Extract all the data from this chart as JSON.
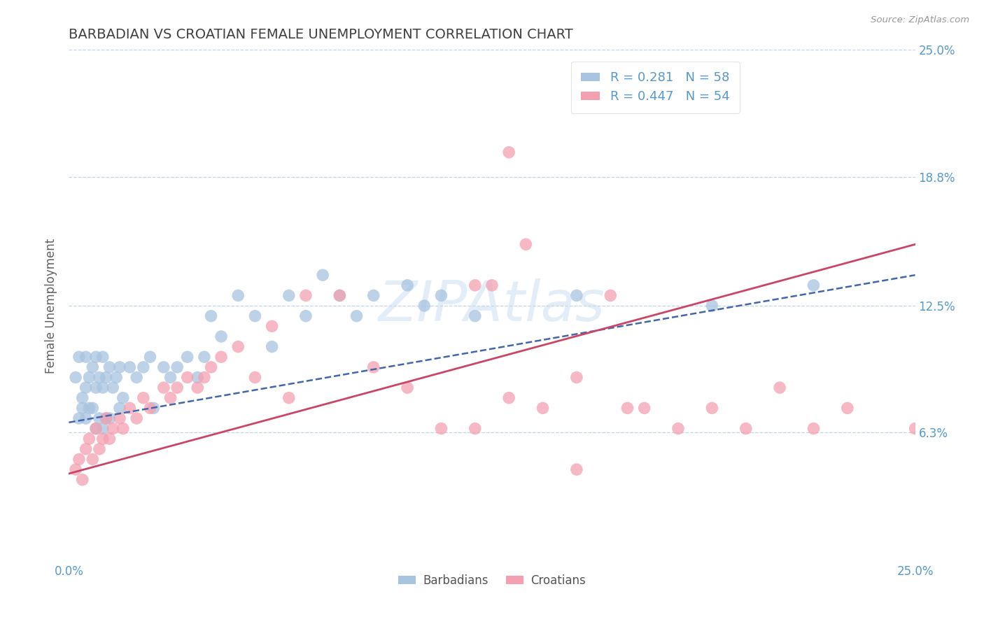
{
  "title": "BARBADIAN VS CROATIAN FEMALE UNEMPLOYMENT CORRELATION CHART",
  "source_text": "Source: ZipAtlas.com",
  "ylabel": "Female Unemployment",
  "xlim": [
    0,
    0.25
  ],
  "ylim": [
    0,
    0.25
  ],
  "xtick_labels": [
    "0.0%",
    "25.0%"
  ],
  "xtick_positions": [
    0.0,
    0.25
  ],
  "ytick_labels": [
    "6.3%",
    "12.5%",
    "18.8%",
    "25.0%"
  ],
  "ytick_positions": [
    0.063,
    0.125,
    0.188,
    0.25
  ],
  "barbadian_color": "#a8c4e0",
  "croatian_color": "#f4a0b0",
  "barbadian_line_color": "#4466aa",
  "croatian_line_color": "#cc4466",
  "barbadian_R": 0.281,
  "barbadian_N": 58,
  "croatian_R": 0.447,
  "croatian_N": 54,
  "background_color": "#ffffff",
  "grid_color": "#c0d4e8",
  "title_color": "#404040",
  "axis_label_color": "#606060",
  "tick_label_color": "#5599cc",
  "legend_label_barbadian": "Barbadians",
  "legend_label_croatian": "Croatians",
  "watermark": "ZIPAtlas",
  "barbadian_trend_x0": 0.0,
  "barbadian_trend_y0": 0.068,
  "barbadian_trend_x1": 0.25,
  "barbadian_trend_y1": 0.14,
  "croatian_trend_x0": 0.0,
  "croatian_trend_y0": 0.043,
  "croatian_trend_x1": 0.25,
  "croatian_trend_y1": 0.155,
  "barbadian_scatter_x": [
    0.002,
    0.003,
    0.003,
    0.004,
    0.004,
    0.005,
    0.005,
    0.005,
    0.006,
    0.006,
    0.007,
    0.007,
    0.008,
    0.008,
    0.008,
    0.009,
    0.009,
    0.01,
    0.01,
    0.01,
    0.011,
    0.011,
    0.012,
    0.012,
    0.013,
    0.014,
    0.015,
    0.015,
    0.016,
    0.018,
    0.02,
    0.022,
    0.024,
    0.025,
    0.028,
    0.03,
    0.032,
    0.035,
    0.038,
    0.04,
    0.042,
    0.045,
    0.05,
    0.055,
    0.06,
    0.065,
    0.07,
    0.075,
    0.08,
    0.085,
    0.09,
    0.1,
    0.105,
    0.11,
    0.12,
    0.15,
    0.19,
    0.22
  ],
  "barbadian_scatter_y": [
    0.09,
    0.07,
    0.1,
    0.08,
    0.075,
    0.07,
    0.085,
    0.1,
    0.075,
    0.09,
    0.075,
    0.095,
    0.065,
    0.085,
    0.1,
    0.07,
    0.09,
    0.065,
    0.085,
    0.1,
    0.07,
    0.09,
    0.07,
    0.095,
    0.085,
    0.09,
    0.075,
    0.095,
    0.08,
    0.095,
    0.09,
    0.095,
    0.1,
    0.075,
    0.095,
    0.09,
    0.095,
    0.1,
    0.09,
    0.1,
    0.12,
    0.11,
    0.13,
    0.12,
    0.105,
    0.13,
    0.12,
    0.14,
    0.13,
    0.12,
    0.13,
    0.135,
    0.125,
    0.13,
    0.12,
    0.13,
    0.125,
    0.135
  ],
  "croatian_scatter_x": [
    0.002,
    0.003,
    0.004,
    0.005,
    0.006,
    0.007,
    0.008,
    0.009,
    0.01,
    0.011,
    0.012,
    0.013,
    0.015,
    0.016,
    0.018,
    0.02,
    0.022,
    0.024,
    0.028,
    0.03,
    0.032,
    0.035,
    0.038,
    0.04,
    0.042,
    0.045,
    0.05,
    0.055,
    0.06,
    0.065,
    0.07,
    0.08,
    0.09,
    0.1,
    0.11,
    0.12,
    0.13,
    0.14,
    0.15,
    0.17,
    0.18,
    0.19,
    0.2,
    0.21,
    0.22,
    0.23,
    0.25,
    0.13,
    0.135,
    0.15,
    0.12,
    0.125,
    0.16,
    0.165
  ],
  "croatian_scatter_y": [
    0.045,
    0.05,
    0.04,
    0.055,
    0.06,
    0.05,
    0.065,
    0.055,
    0.06,
    0.07,
    0.06,
    0.065,
    0.07,
    0.065,
    0.075,
    0.07,
    0.08,
    0.075,
    0.085,
    0.08,
    0.085,
    0.09,
    0.085,
    0.09,
    0.095,
    0.1,
    0.105,
    0.09,
    0.115,
    0.08,
    0.13,
    0.13,
    0.095,
    0.085,
    0.065,
    0.065,
    0.08,
    0.075,
    0.09,
    0.075,
    0.065,
    0.075,
    0.065,
    0.085,
    0.065,
    0.075,
    0.065,
    0.2,
    0.155,
    0.045,
    0.135,
    0.135,
    0.13,
    0.075
  ]
}
